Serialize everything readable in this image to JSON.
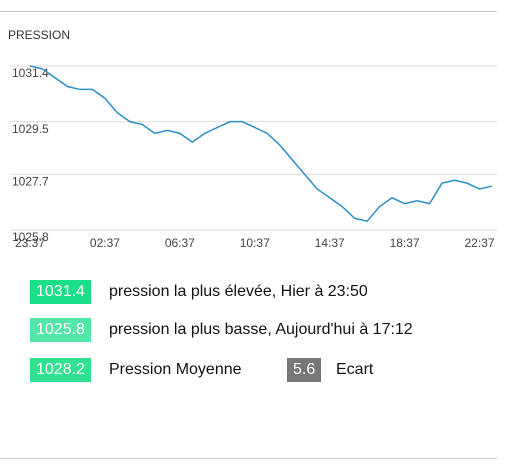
{
  "chart_data": {
    "type": "line",
    "title": "PRESSION",
    "categories": [
      "23:37",
      null,
      null,
      null,
      null,
      null,
      "02:37",
      null,
      null,
      null,
      null,
      null,
      "06:37",
      null,
      null,
      null,
      null,
      null,
      "10:37",
      null,
      null,
      null,
      null,
      null,
      "14:37",
      null,
      null,
      null,
      null,
      null,
      "18:37",
      null,
      null,
      null,
      null,
      null,
      "22:37",
      null
    ],
    "series": [
      {
        "color": "#2a8fc7",
        "values": [
          1031.4,
          1031.3,
          1031.0,
          1030.7,
          1030.6,
          1030.6,
          1030.3,
          1029.8,
          1029.5,
          1029.4,
          1029.1,
          1029.2,
          1029.1,
          1028.8,
          1029.1,
          1029.3,
          1029.5,
          1029.5,
          1029.3,
          1029.1,
          1028.7,
          1028.2,
          1027.7,
          1027.2,
          1026.9,
          1026.6,
          1026.2,
          1026.1,
          1026.6,
          1026.9,
          1026.7,
          1026.8,
          1026.7,
          1027.4,
          1027.5,
          1027.4,
          1027.2,
          1027.3
        ]
      }
    ],
    "ylim": [
      1025.8,
      1031.4
    ],
    "yticks": [
      1025.8,
      1027.7,
      1029.5,
      1031.4
    ],
    "grid": true
  },
  "stats": [
    {
      "value": "1031.4",
      "label": "pression la plus élevée, Hier à 23:50",
      "color": "#19df89"
    },
    {
      "value": "1025.8",
      "label": "pression la plus basse, Aujourd'hui à 17:12",
      "color": "#52e6a9"
    },
    {
      "value": "1028.2",
      "label": "Pression Moyenne",
      "color": "#2fe191"
    },
    {
      "value": "5.6",
      "label": "Ecart",
      "color": "#777777"
    }
  ]
}
